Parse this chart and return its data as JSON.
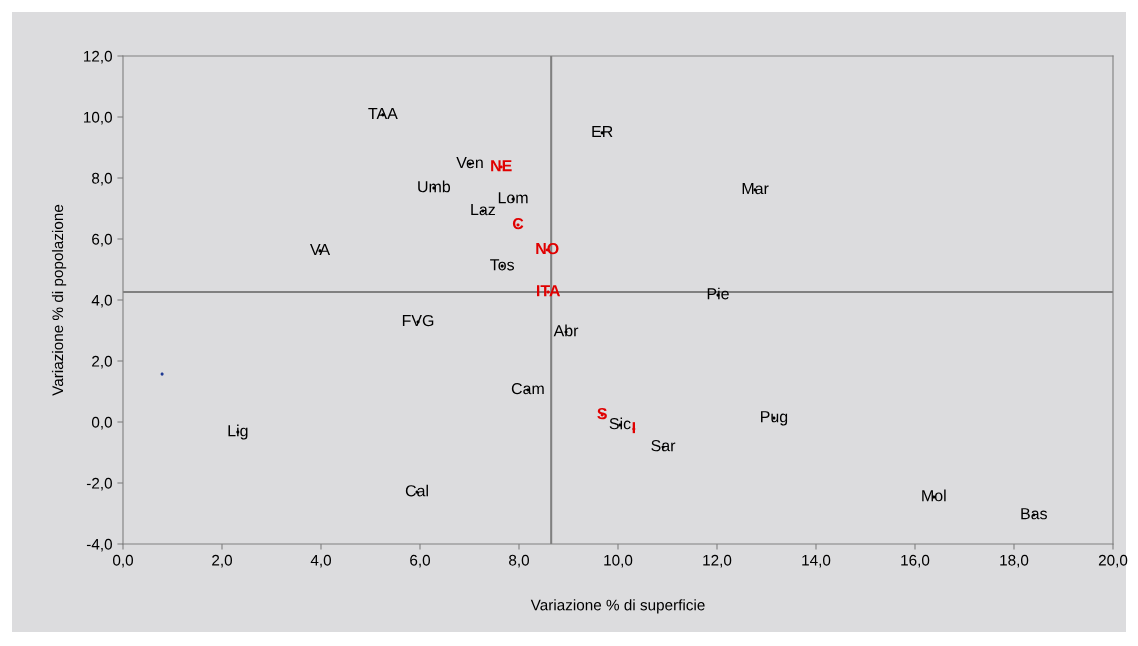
{
  "chart_data": {
    "type": "scatter",
    "xlabel": "Variazione % di superficie",
    "ylabel": "Variazione % di popolazione",
    "xlim": [
      0,
      20
    ],
    "ylim": [
      -4,
      12
    ],
    "xticks": [
      {
        "value": 0,
        "label": "0,0"
      },
      {
        "value": 2,
        "label": "2,0"
      },
      {
        "value": 4,
        "label": "4,0"
      },
      {
        "value": 6,
        "label": "6,0"
      },
      {
        "value": 8,
        "label": "8,0"
      },
      {
        "value": 10,
        "label": "10,0"
      },
      {
        "value": 12,
        "label": "12,0"
      },
      {
        "value": 14,
        "label": "14,0"
      },
      {
        "value": 16,
        "label": "16,0"
      },
      {
        "value": 18,
        "label": "18,0"
      },
      {
        "value": 20,
        "label": "20,0"
      }
    ],
    "yticks": [
      {
        "value": -4,
        "label": "-4,0"
      },
      {
        "value": -2,
        "label": "-2,0"
      },
      {
        "value": 0,
        "label": "0,0"
      },
      {
        "value": 2,
        "label": "2,0"
      },
      {
        "value": 4,
        "label": "4,0"
      },
      {
        "value": 6,
        "label": "6,0"
      },
      {
        "value": 8,
        "label": "8,0"
      },
      {
        "value": 10,
        "label": "10,0"
      },
      {
        "value": 12,
        "label": "12,0"
      }
    ],
    "grid": false,
    "legend": false,
    "marker": "circle",
    "ref_lines": [
      {
        "axis": "x",
        "value": 8.65,
        "color": "#808080"
      },
      {
        "axis": "y",
        "value": 4.26,
        "color": "#808080"
      }
    ],
    "series": [
      {
        "color": "#000000",
        "x": [
          5.25,
          9.68,
          7.01,
          6.28,
          7.88,
          7.27,
          3.98,
          7.66,
          5.96,
          8.95,
          8.18,
          10.04,
          10.91,
          13.15,
          16.38,
          18.4,
          12.77,
          12.02,
          2.32,
          5.94
        ],
        "values": [
          10.07,
          9.48,
          8.46,
          7.67,
          7.31,
          6.92,
          5.61,
          5.11,
          3.28,
          2.95,
          1.05,
          -0.1,
          -0.82,
          0.13,
          -2.46,
          -3.05,
          7.61,
          4.16,
          -0.33,
          -2.3
        ],
        "value_labels": [
          "TAA",
          "ER",
          "Ven",
          "Umb",
          "Lom",
          "Laz",
          "VA",
          "Tos",
          "FVG",
          "Abr",
          "Cam",
          "Sic",
          "Sar",
          "Pug",
          "Mol",
          "Bas",
          "Mar",
          "Pie",
          "Lig",
          "Cal"
        ]
      },
      {
        "color": "#e00000",
        "x": [
          7.64,
          7.98,
          8.57,
          8.59,
          9.68,
          10.32
        ],
        "values": [
          8.36,
          6.46,
          5.64,
          4.26,
          0.23,
          -0.23
        ],
        "value_labels": [
          "NE",
          "C",
          "NO",
          "ITA",
          "S",
          "I"
        ]
      },
      {
        "color": "#1f3a93",
        "x": [
          0.79
        ],
        "values": [
          1.57
        ]
      }
    ]
  }
}
